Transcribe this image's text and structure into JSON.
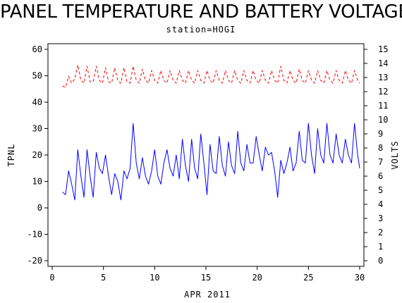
{
  "chart_data": {
    "type": "line",
    "title": "PANEL TEMPERATURE AND BATTERY VOLTAGE",
    "subtitle": "station=HOGI",
    "xlabel": "APR 2011",
    "ylabel_left": "TPNL",
    "ylabel_right": "VOLTS",
    "xlim": [
      0,
      30
    ],
    "ylim_left": [
      -20,
      60
    ],
    "ylim_right": [
      0,
      15
    ],
    "x_ticks": [
      0,
      5,
      10,
      15,
      20,
      25,
      30
    ],
    "y_left_ticks": [
      -20,
      -10,
      0,
      10,
      20,
      30,
      40,
      50,
      60
    ],
    "y_right_ticks": [
      0,
      1,
      2,
      3,
      4,
      5,
      6,
      7,
      8,
      9,
      10,
      11,
      12,
      13,
      14,
      15
    ],
    "grid": false,
    "legend": "none",
    "series": [
      {
        "axis": "left",
        "color": "#0000ff",
        "style": "solid",
        "x": [
          1.0,
          1.3,
          1.6,
          1.9,
          2.2,
          2.5,
          2.8,
          3.1,
          3.4,
          3.7,
          4.0,
          4.3,
          4.6,
          4.9,
          5.2,
          5.5,
          5.8,
          6.1,
          6.4,
          6.7,
          7.0,
          7.3,
          7.6,
          7.9,
          8.2,
          8.5,
          8.8,
          9.1,
          9.4,
          9.7,
          10.0,
          10.3,
          10.6,
          10.9,
          11.2,
          11.5,
          11.8,
          12.1,
          12.4,
          12.7,
          13.0,
          13.3,
          13.6,
          13.9,
          14.2,
          14.5,
          14.8,
          15.1,
          15.4,
          15.7,
          16.0,
          16.3,
          16.6,
          16.9,
          17.2,
          17.5,
          17.8,
          18.1,
          18.4,
          18.7,
          19.0,
          19.3,
          19.6,
          19.9,
          20.2,
          20.5,
          20.8,
          21.1,
          21.4,
          21.7,
          22.0,
          22.3,
          22.6,
          22.9,
          23.2,
          23.5,
          23.8,
          24.1,
          24.4,
          24.7,
          25.0,
          25.3,
          25.6,
          25.9,
          26.2,
          26.5,
          26.8,
          27.1,
          27.4,
          27.7,
          28.0,
          28.3,
          28.6,
          28.9,
          29.2,
          29.5,
          29.8,
          30.0
        ],
        "y": [
          6,
          5,
          14,
          9,
          3,
          22,
          12,
          4,
          22,
          12,
          4,
          21,
          15,
          13,
          20,
          12,
          5,
          13,
          10,
          3,
          14,
          11,
          15,
          32,
          17,
          11,
          19,
          12,
          9,
          14,
          22,
          12,
          9,
          17,
          22,
          15,
          12,
          20,
          11,
          26,
          16,
          10,
          26,
          15,
          11,
          28,
          17,
          5,
          24,
          14,
          13,
          27,
          16,
          12,
          25,
          16,
          13,
          29,
          17,
          14,
          24,
          17,
          17,
          27,
          20,
          14,
          23,
          20,
          21,
          14,
          4,
          18,
          13,
          17,
          23,
          14,
          17,
          29,
          18,
          17,
          32,
          20,
          13,
          30,
          20,
          17,
          32,
          20,
          17,
          28,
          20,
          17,
          26,
          20,
          17,
          32,
          20,
          15
        ]
      },
      {
        "axis": "right",
        "color": "#ff0000",
        "style": "dashed",
        "x": [
          1.0,
          1.3,
          1.6,
          1.9,
          2.2,
          2.5,
          2.8,
          3.1,
          3.4,
          3.7,
          4.0,
          4.3,
          4.6,
          4.9,
          5.2,
          5.5,
          5.8,
          6.1,
          6.4,
          6.7,
          7.0,
          7.3,
          7.6,
          7.9,
          8.2,
          8.5,
          8.8,
          9.1,
          9.4,
          9.7,
          10.0,
          10.3,
          10.6,
          10.9,
          11.2,
          11.5,
          11.8,
          12.1,
          12.4,
          12.7,
          13.0,
          13.3,
          13.6,
          13.9,
          14.2,
          14.5,
          14.8,
          15.1,
          15.4,
          15.7,
          16.0,
          16.3,
          16.6,
          16.9,
          17.2,
          17.5,
          17.8,
          18.1,
          18.4,
          18.7,
          19.0,
          19.3,
          19.6,
          19.9,
          20.2,
          20.5,
          20.8,
          21.1,
          21.4,
          21.7,
          22.0,
          22.3,
          22.6,
          22.9,
          23.2,
          23.5,
          23.8,
          24.1,
          24.4,
          24.7,
          25.0,
          25.3,
          25.6,
          25.9,
          26.2,
          26.5,
          26.8,
          27.1,
          27.4,
          27.7,
          28.0,
          28.3,
          28.6,
          28.9,
          29.2,
          29.5,
          29.8,
          30.0
        ],
        "y": [
          12.4,
          12.3,
          13.1,
          12.6,
          12.9,
          13.9,
          12.8,
          12.6,
          13.8,
          12.7,
          12.7,
          13.8,
          12.8,
          12.6,
          13.7,
          12.7,
          12.6,
          13.7,
          12.8,
          12.6,
          13.7,
          12.7,
          12.6,
          13.8,
          12.8,
          12.6,
          13.6,
          12.8,
          12.6,
          13.5,
          12.8,
          12.6,
          13.5,
          12.8,
          12.6,
          13.5,
          12.8,
          12.6,
          13.5,
          12.8,
          12.6,
          13.5,
          12.8,
          12.6,
          13.5,
          12.8,
          12.6,
          13.5,
          12.8,
          12.6,
          13.5,
          12.8,
          12.6,
          13.5,
          12.8,
          12.6,
          13.5,
          12.8,
          12.6,
          13.5,
          12.8,
          12.6,
          13.5,
          12.8,
          12.6,
          13.5,
          12.8,
          12.6,
          13.5,
          12.8,
          12.6,
          13.8,
          12.8,
          12.6,
          13.5,
          12.8,
          12.6,
          13.6,
          12.8,
          12.6,
          13.5,
          12.8,
          12.6,
          13.5,
          12.8,
          12.6,
          13.5,
          12.8,
          12.6,
          13.5,
          12.8,
          12.6,
          13.5,
          12.8,
          12.6,
          13.5,
          12.8,
          12.6
        ]
      }
    ]
  }
}
